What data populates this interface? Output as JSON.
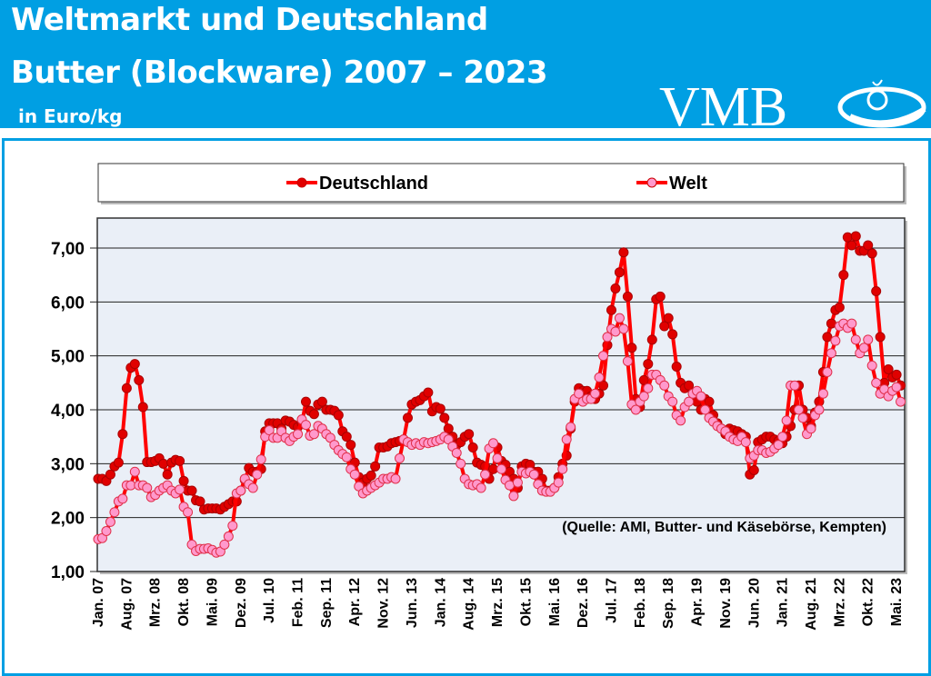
{
  "header": {
    "title_line1": "Weltmarkt und Deutschland",
    "title_line2": "Butter (Blockware) 2007 – 2023",
    "unit": "in Euro/kg",
    "logo_text": "VMB",
    "background_color": "#009fe3"
  },
  "chart_data": {
    "type": "line",
    "title": "Weltmarkt und Deutschland Butter (Blockware) 2007 – 2023",
    "ylabel": "in Euro/kg",
    "ylim": [
      1,
      7.6
    ],
    "yticks": [
      "1,00",
      "2,00",
      "3,00",
      "4,00",
      "5,00",
      "6,00",
      "7,00"
    ],
    "grid": true,
    "legend": "top",
    "annotation": "(Quelle: AMI, Butter- und Käsebörse, Kempten)",
    "x_start": "2007-01",
    "x_frequency": "monthly",
    "xtick_labels": [
      "Jan. 07",
      "Aug. 07",
      "Mrz. 08",
      "Okt. 08",
      "Mai. 09",
      "Dez. 09",
      "Jul. 10",
      "Feb. 11",
      "Sep. 11",
      "Apr. 12",
      "Nov. 12",
      "Jun. 13",
      "Jan. 14",
      "Aug. 14",
      "Mrz. 15",
      "Okt. 15",
      "Mai. 16",
      "Dez. 16",
      "Jul. 17",
      "Feb. 18",
      "Sep. 18",
      "Apr. 19",
      "Nov. 19",
      "Jun. 20",
      "Jan. 21",
      "Aug. 21",
      "Mrz. 22",
      "Okt. 22",
      "Mai. 23"
    ],
    "series": [
      {
        "name": "Deutschland",
        "color": "#ff0000",
        "marker_color": "#e00000",
        "values": [
          2.72,
          2.72,
          2.68,
          2.8,
          2.95,
          3.02,
          3.55,
          4.4,
          4.78,
          4.85,
          4.55,
          4.05,
          3.03,
          3.03,
          3.05,
          3.1,
          3.0,
          2.8,
          3.02,
          3.07,
          3.05,
          2.68,
          2.5,
          2.5,
          2.32,
          2.3,
          2.15,
          2.17,
          2.17,
          2.17,
          2.15,
          2.2,
          2.25,
          2.3,
          2.3,
          2.5,
          2.7,
          2.92,
          2.85,
          2.85,
          2.9,
          3.6,
          3.75,
          3.75,
          3.75,
          3.65,
          3.8,
          3.78,
          3.72,
          3.68,
          3.75,
          4.15,
          3.98,
          3.92,
          4.1,
          4.15,
          4.0,
          4.0,
          3.98,
          3.9,
          3.6,
          3.5,
          3.35,
          3.02,
          2.75,
          2.65,
          2.72,
          2.78,
          2.95,
          3.3,
          3.3,
          3.32,
          3.38,
          3.4,
          3.42,
          3.45,
          3.85,
          4.1,
          4.15,
          4.18,
          4.25,
          4.32,
          3.97,
          4.05,
          4.02,
          3.85,
          3.65,
          3.5,
          3.35,
          3.4,
          3.5,
          3.55,
          3.3,
          3.02,
          2.98,
          2.95,
          2.72,
          2.9,
          3.3,
          3.05,
          2.98,
          2.85,
          2.72,
          2.55,
          2.95,
          3.0,
          2.98,
          2.85,
          2.85,
          2.72,
          2.5,
          2.5,
          2.55,
          2.75,
          3.0,
          3.15,
          3.65,
          4.15,
          4.4,
          4.35,
          4.35,
          4.25,
          4.2,
          4.3,
          4.45,
          5.2,
          5.85,
          6.25,
          6.55,
          6.92,
          6.1,
          5.15,
          4.2,
          4.05,
          4.55,
          4.85,
          5.3,
          6.05,
          6.1,
          5.55,
          5.7,
          5.4,
          4.8,
          4.5,
          4.4,
          4.45,
          4.3,
          4.15,
          4.0,
          4.2,
          4.15,
          3.9,
          3.75,
          3.65,
          3.55,
          3.65,
          3.62,
          3.6,
          3.55,
          3.5,
          2.8,
          2.88,
          3.4,
          3.45,
          3.5,
          3.5,
          3.45,
          3.42,
          3.38,
          3.5,
          3.7,
          4.0,
          4.45,
          4.0,
          3.85,
          3.7,
          3.95,
          4.15,
          4.7,
          5.35,
          5.6,
          5.85,
          5.9,
          6.5,
          7.2,
          7.05,
          7.22,
          6.95,
          6.95,
          7.05,
          6.9,
          6.2,
          5.35,
          4.5,
          4.75,
          4.6,
          4.65,
          4.45
        ]
      },
      {
        "name": "Welt",
        "color": "#ff0000",
        "marker_color": "#ff99cc",
        "values": [
          1.6,
          1.62,
          1.75,
          1.92,
          2.1,
          2.3,
          2.35,
          2.6,
          2.6,
          2.85,
          2.6,
          2.6,
          2.55,
          2.38,
          2.42,
          2.5,
          2.55,
          2.6,
          2.5,
          2.45,
          2.52,
          2.2,
          2.1,
          1.5,
          1.38,
          1.42,
          1.42,
          1.43,
          1.4,
          1.35,
          1.37,
          1.5,
          1.65,
          1.85,
          2.45,
          2.5,
          2.72,
          2.62,
          2.55,
          2.8,
          3.08,
          3.5,
          3.62,
          3.48,
          3.48,
          3.6,
          3.48,
          3.42,
          3.5,
          3.55,
          3.82,
          3.72,
          3.52,
          3.55,
          3.7,
          3.65,
          3.55,
          3.48,
          3.35,
          3.25,
          3.18,
          3.12,
          2.9,
          2.8,
          2.58,
          2.45,
          2.5,
          2.55,
          2.6,
          2.65,
          2.72,
          2.72,
          2.75,
          2.72,
          3.1,
          3.45,
          3.4,
          3.35,
          3.38,
          3.35,
          3.4,
          3.38,
          3.4,
          3.42,
          3.45,
          3.5,
          3.45,
          3.32,
          3.2,
          3.0,
          2.72,
          2.62,
          2.6,
          2.62,
          2.55,
          2.8,
          3.28,
          3.38,
          3.1,
          2.9,
          2.7,
          2.6,
          2.4,
          2.65,
          2.85,
          2.82,
          2.85,
          2.8,
          2.62,
          2.5,
          2.48,
          2.48,
          2.55,
          2.65,
          2.9,
          3.45,
          3.68,
          4.2,
          4.3,
          4.15,
          4.2,
          4.2,
          4.3,
          4.6,
          5.0,
          5.35,
          5.5,
          5.45,
          5.7,
          5.5,
          4.9,
          4.1,
          4.0,
          4.15,
          4.25,
          4.4,
          4.65,
          4.65,
          4.55,
          4.45,
          4.25,
          4.15,
          3.9,
          3.8,
          4.05,
          4.15,
          4.3,
          4.35,
          4.25,
          4.0,
          3.85,
          3.78,
          3.7,
          3.65,
          3.6,
          3.5,
          3.45,
          3.42,
          3.5,
          3.4,
          3.1,
          3.15,
          3.25,
          3.25,
          3.2,
          3.22,
          3.28,
          3.35,
          3.5,
          3.8,
          4.45,
          4.45,
          4.0,
          3.85,
          3.55,
          3.65,
          3.9,
          4.0,
          4.3,
          4.7,
          5.05,
          5.28,
          5.55,
          5.6,
          5.52,
          5.6,
          5.3,
          5.05,
          5.15,
          5.3,
          4.82,
          4.5,
          4.3,
          4.38,
          4.25,
          4.35,
          4.42,
          4.15
        ]
      }
    ],
    "plot_background": "#eaeff7"
  }
}
